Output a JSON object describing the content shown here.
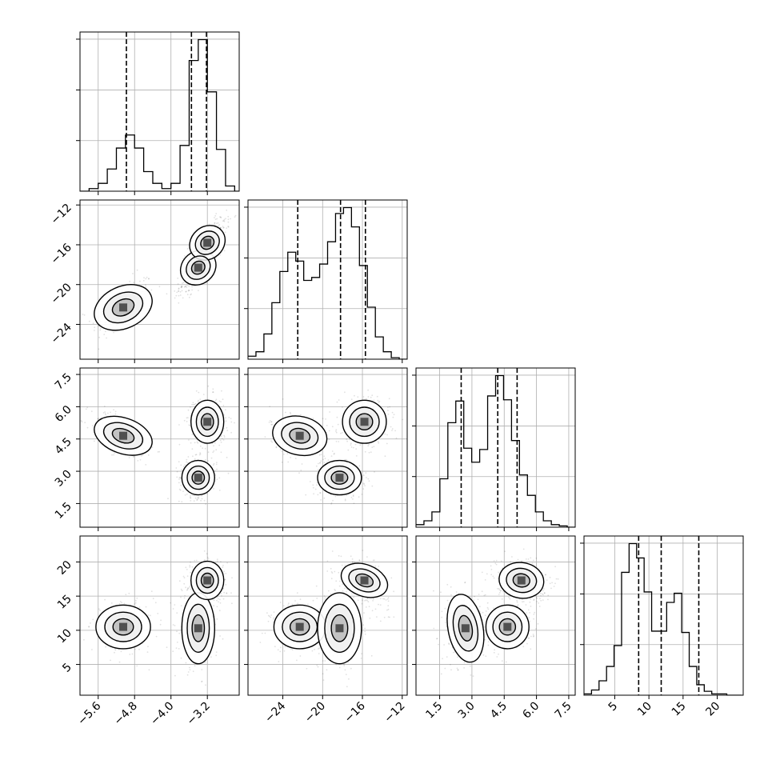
{
  "chart_data": {
    "type": "corner",
    "grid": true,
    "parameters": [
      {
        "index": 0,
        "range": [
          -6.0,
          -2.5
        ],
        "ticks": [
          -5.6,
          -4.8,
          -4.0,
          -3.2
        ],
        "tick_labels": [
          "−5.6",
          "−4.8",
          "−4.0",
          "−3.2"
        ],
        "quantiles": [
          -4.98,
          -3.55,
          -3.22
        ],
        "histogram": {
          "bin_start": -6.0,
          "bin_width": 0.2,
          "counts": [
            0,
            2,
            6,
            17,
            33,
            43,
            33,
            15,
            6,
            2,
            6,
            35,
            100,
            116,
            76,
            32,
            4,
            0
          ]
        }
      },
      {
        "index": 1,
        "range": [
          -27.5,
          -11.5
        ],
        "ticks": [
          -24,
          -20,
          -16,
          -12
        ],
        "tick_labels": [
          "−24",
          "−20",
          "−16",
          "−12"
        ],
        "quantiles": [
          -22.5,
          -18.2,
          -15.7
        ],
        "histogram": {
          "bin_start": -27.5,
          "bin_width": 0.8,
          "counts": [
            2,
            5,
            17,
            38,
            59,
            72,
            66,
            53,
            55,
            64,
            79,
            98,
            102,
            89,
            63,
            35,
            15,
            5,
            1,
            0
          ]
        }
      },
      {
        "index": 2,
        "range": [
          0.4,
          7.8
        ],
        "ticks": [
          1.5,
          3.0,
          4.5,
          6.0,
          7.5
        ],
        "tick_labels": [
          "1.5",
          "3.0",
          "4.5",
          "6.0",
          "7.5"
        ],
        "quantiles": [
          2.5,
          4.2,
          5.1
        ],
        "histogram": {
          "bin_start": 0.4,
          "bin_width": 0.37,
          "counts": [
            2,
            5,
            12,
            38,
            82,
            99,
            62,
            51,
            61,
            103,
            119,
            100,
            68,
            41,
            25,
            12,
            5,
            2,
            1,
            0
          ]
        }
      },
      {
        "index": 3,
        "range": [
          0.5,
          23.8
        ],
        "ticks": [
          5,
          10,
          15,
          20
        ],
        "tick_labels": [
          "5",
          "10",
          "15",
          "20"
        ],
        "quantiles": [
          8.5,
          11.8,
          17.3
        ],
        "histogram": {
          "bin_start": 0.5,
          "bin_width": 1.1,
          "counts": [
            1,
            4,
            11,
            22,
            38,
            94,
            116,
            105,
            79,
            49,
            49,
            71,
            78,
            48,
            22,
            8,
            3,
            1,
            1,
            0,
            0
          ]
        }
      }
    ],
    "mixture": [
      {
        "weight": 0.26,
        "mean": [
          -5.05,
          -22.3,
          4.65,
          10.5
        ],
        "sd": [
          0.3,
          1.3,
          0.5,
          1.6
        ]
      },
      {
        "weight": 0.37,
        "mean": [
          -3.4,
          -18.3,
          2.7,
          10.3
        ],
        "sd": [
          0.18,
          1.1,
          0.4,
          2.6
        ]
      },
      {
        "weight": 0.37,
        "mean": [
          -3.2,
          -15.8,
          5.3,
          17.3
        ],
        "sd": [
          0.18,
          1.1,
          0.5,
          1.4
        ]
      }
    ]
  }
}
